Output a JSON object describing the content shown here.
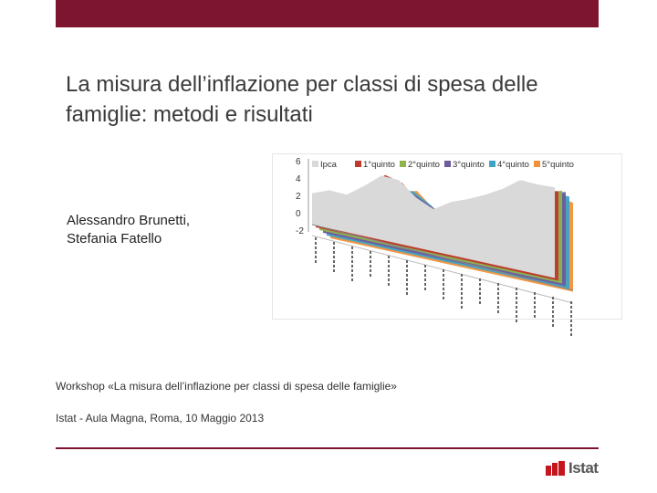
{
  "slide": {
    "title": "La misura dell’inflazione per classi di spesa delle famiglie: metodi e risultati",
    "authors": [
      "Alessandro Brunetti,",
      "Stefania Fatello"
    ],
    "workshop": "Workshop «La misura dell’inflazione per classi di spesa delle famiglie»",
    "venue": "Istat - Aula Magna, Roma, 10 Maggio 2013",
    "logo_text": "Istat"
  },
  "colors": {
    "brand": "#7d1531",
    "rule": "#7d1531",
    "logo_red": "#c4161c",
    "logo_text": "#555555",
    "ipca": "#d9d9d9",
    "q1": "#c0392b",
    "q2": "#8fb24d",
    "q3": "#6d5c9e",
    "q4": "#3fa3c6",
    "q5": "#f0923b"
  },
  "chart_data": {
    "type": "area",
    "legend": [
      "Ipca",
      "1°quinto",
      "2°quinto",
      "3°quinto",
      "4°quinto",
      "5°quinto"
    ],
    "yticks": [
      "6",
      "4",
      "2",
      "0",
      "-2"
    ],
    "ylim": [
      -2,
      6
    ],
    "x_tick_count": 15,
    "series_profile": [
      1.8,
      2.2,
      1.6,
      2.8,
      4.2,
      3.6,
      1.2,
      -0.4,
      0.6,
      1.0,
      1.6,
      2.4,
      3.6,
      3.0,
      2.6
    ]
  }
}
